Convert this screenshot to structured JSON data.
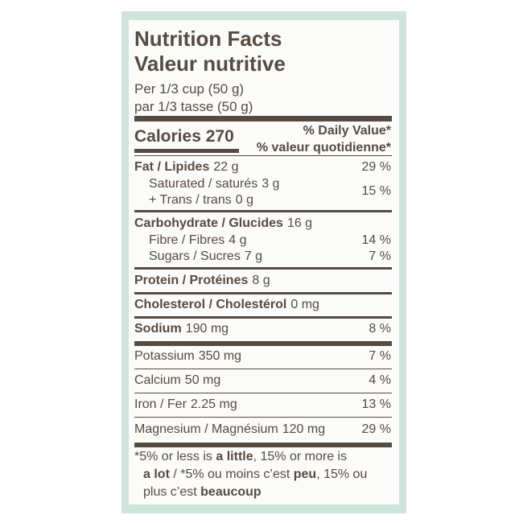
{
  "header": {
    "title_en": "Nutrition Facts",
    "title_fr": "Valeur nutritive",
    "serving_en": "Per 1/3 cup (50 g)",
    "serving_fr": "par 1/3 tasse (50 g)"
  },
  "calories": "Calories 270",
  "daily_value_heading": {
    "en": "% Daily Value*",
    "fr": "% valeur quotidienne*"
  },
  "nutrients": [
    {
      "name": "Fat / Lipides",
      "amount": "22 g",
      "dv": "29 %",
      "bold": true
    },
    {
      "name": "Saturated / saturés",
      "amount": "3 g",
      "dv": "15 %",
      "bold": false
    },
    {
      "name": "+ Trans / trans",
      "amount": "0 g",
      "bold": false
    },
    {
      "name": "Carbohydrate / Glucides",
      "amount": "16 g",
      "bold": true
    },
    {
      "name": "Fibre / Fibres",
      "amount": "4 g",
      "dv": "14 %",
      "bold": false
    },
    {
      "name": "Sugars / Sucres",
      "amount": "7 g",
      "dv": "7 %",
      "bold": false
    },
    {
      "name": "Protein / Protéines",
      "amount": "8 g",
      "bold": true
    },
    {
      "name": "Cholesterol / Cholestérol",
      "amount": "0 mg",
      "bold": true
    },
    {
      "name": "Sodium",
      "amount": "190 mg",
      "dv": "8 %",
      "bold": true
    },
    {
      "name": "Potassium",
      "amount": "350 mg",
      "dv": "7 %",
      "bold": false
    },
    {
      "name": "Calcium",
      "amount": "50 mg",
      "dv": "4 %",
      "bold": false
    },
    {
      "name": "Iron / Fer",
      "amount": "2.25 mg",
      "dv": "13 %",
      "bold": false
    },
    {
      "name": "Magnesium / Magnésium",
      "amount": "120 mg",
      "dv": "29 %",
      "bold": false
    }
  ],
  "footnote": [
    [
      {
        "text": "*5% or less is ",
        "bold": false
      },
      {
        "text": "a little",
        "bold": true
      },
      {
        "text": ", 15% or more is",
        "bold": false
      }
    ],
    [
      {
        "text": "a lot",
        "bold": true
      },
      {
        "text": " / *5% ou moins c’est ",
        "bold": false
      },
      {
        "text": "peu",
        "bold": true
      },
      {
        "text": ", 15% ou",
        "bold": false
      }
    ],
    [
      {
        "text": "plus c’est ",
        "bold": false
      },
      {
        "text": "beaucoup",
        "bold": true
      }
    ]
  ]
}
